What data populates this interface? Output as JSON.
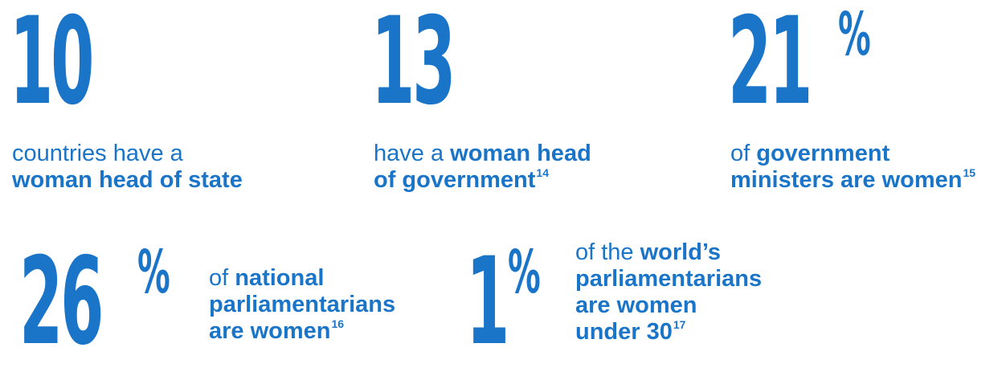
{
  "colors": {
    "accent": "#1a75c9",
    "background": "#ffffff"
  },
  "stats": [
    {
      "number": "10",
      "suffix": "",
      "caption_lines": [
        [
          {
            "text": "countries have a",
            "bold": false
          }
        ],
        [
          {
            "text": "woman head of state",
            "bold": true
          }
        ]
      ]
    },
    {
      "number": "13",
      "suffix": "",
      "caption_lines": [
        [
          {
            "text": "have a ",
            "bold": false
          },
          {
            "text": "woman head",
            "bold": true
          }
        ],
        [
          {
            "text": "of government",
            "bold": true
          },
          {
            "text": "14",
            "sup": true
          }
        ]
      ]
    },
    {
      "number": "21",
      "suffix": "%",
      "caption_lines": [
        [
          {
            "text": "of ",
            "bold": false
          },
          {
            "text": "government",
            "bold": true
          }
        ],
        [
          {
            "text": "ministers are women",
            "bold": true
          },
          {
            "text": "15",
            "sup": true
          }
        ]
      ]
    },
    {
      "number": "26",
      "suffix": "%",
      "caption_lines": [
        [
          {
            "text": "of ",
            "bold": false
          },
          {
            "text": "national",
            "bold": true
          }
        ],
        [
          {
            "text": "parliamentarians",
            "bold": true
          }
        ],
        [
          {
            "text": "are women",
            "bold": true
          },
          {
            "text": "16",
            "sup": true
          }
        ]
      ]
    },
    {
      "number": "1",
      "suffix": "%",
      "caption_lines": [
        [
          {
            "text": "of the ",
            "bold": false
          },
          {
            "text": "world’s",
            "bold": true
          }
        ],
        [
          {
            "text": "parliamentarians",
            "bold": true
          }
        ],
        [
          {
            "text": "are women",
            "bold": true
          }
        ],
        [
          {
            "text": "under 30",
            "bold": true
          },
          {
            "text": "17",
            "sup": true
          }
        ]
      ]
    }
  ]
}
